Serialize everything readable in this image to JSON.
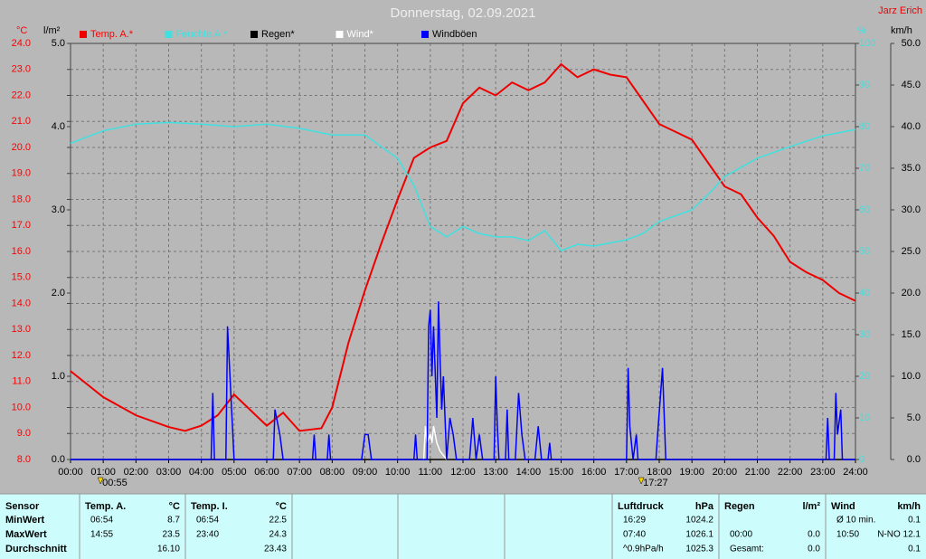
{
  "chart_data": {
    "type": "line",
    "title": "Donnerstag, 02.09.2021",
    "author": "Jarz Erich",
    "y_label": "°C",
    "y_color": "#ff0000",
    "rain_label": "l/m²",
    "y2_label": "%",
    "y2_color": "#40e0e0",
    "y3_label": "km/h",
    "grid": true,
    "xlim": [
      0,
      24
    ],
    "xticks": [
      {
        "value": 0,
        "label": "00:00"
      },
      {
        "value": 1,
        "label": "01:00"
      },
      {
        "value": 2,
        "label": "02:00"
      },
      {
        "value": 3,
        "label": "03:00"
      },
      {
        "value": 4,
        "label": "04:00"
      },
      {
        "value": 5,
        "label": "05:00"
      },
      {
        "value": 6,
        "label": "06:00"
      },
      {
        "value": 7,
        "label": "07:00"
      },
      {
        "value": 8,
        "label": "08:00"
      },
      {
        "value": 9,
        "label": "09:00"
      },
      {
        "value": 10,
        "label": "10:00"
      },
      {
        "value": 11,
        "label": "11:00"
      },
      {
        "value": 12,
        "label": "12:00"
      },
      {
        "value": 13,
        "label": "13:00"
      },
      {
        "value": 14,
        "label": "14:00"
      },
      {
        "value": 15,
        "label": "15:00"
      },
      {
        "value": 16,
        "label": "16:00"
      },
      {
        "value": 17,
        "label": "17:00"
      },
      {
        "value": 18,
        "label": "18:00"
      },
      {
        "value": 19,
        "label": "19:00"
      },
      {
        "value": 20,
        "label": "20:00"
      },
      {
        "value": 21,
        "label": "21:00"
      },
      {
        "value": 22,
        "label": "22:00"
      },
      {
        "value": 23,
        "label": "23:00"
      },
      {
        "value": 24,
        "label": "24:00"
      }
    ],
    "ylim": [
      8,
      24
    ],
    "yticks": [
      {
        "value": 8,
        "label": "8.0"
      },
      {
        "value": 9,
        "label": "9.0"
      },
      {
        "value": 10,
        "label": "10.0"
      },
      {
        "value": 11,
        "label": "11.0"
      },
      {
        "value": 12,
        "label": "12.0"
      },
      {
        "value": 13,
        "label": "13.0"
      },
      {
        "value": 14,
        "label": "14.0"
      },
      {
        "value": 15,
        "label": "15.0"
      },
      {
        "value": 16,
        "label": "16.0"
      },
      {
        "value": 17,
        "label": "17.0"
      },
      {
        "value": 18,
        "label": "18.0"
      },
      {
        "value": 19,
        "label": "19.0"
      },
      {
        "value": 20,
        "label": "20.0"
      },
      {
        "value": 21,
        "label": "21.0"
      },
      {
        "value": 22,
        "label": "22.0"
      },
      {
        "value": 23,
        "label": "23.0"
      },
      {
        "value": 24,
        "label": "24.0"
      }
    ],
    "rain_lim": [
      0,
      5
    ],
    "rain_ticks": [
      {
        "value": 0,
        "label": "0.0"
      },
      {
        "value": 1,
        "label": "1.0"
      },
      {
        "value": 2,
        "label": "2.0"
      },
      {
        "value": 3,
        "label": "3.0"
      },
      {
        "value": 4,
        "label": "4.0"
      },
      {
        "value": 5,
        "label": "5.0"
      }
    ],
    "y2lim": [
      0,
      100
    ],
    "y2ticks": [
      0,
      10,
      20,
      30,
      40,
      50,
      60,
      70,
      80,
      90,
      100
    ],
    "y3lim": [
      0,
      50
    ],
    "y3ticks": [
      {
        "value": 0,
        "label": "0.0"
      },
      {
        "value": 5,
        "label": "5.0"
      },
      {
        "value": 10,
        "label": "10.0"
      },
      {
        "value": 15,
        "label": "15.0"
      },
      {
        "value": 20,
        "label": "20.0"
      },
      {
        "value": 25,
        "label": "25.0"
      },
      {
        "value": 30,
        "label": "30.0"
      },
      {
        "value": 35,
        "label": "35.0"
      },
      {
        "value": 40,
        "label": "40.0"
      },
      {
        "value": 45,
        "label": "45.0"
      },
      {
        "value": 50,
        "label": "50.0"
      }
    ],
    "series": [
      {
        "name": "Temp. A.*",
        "color": "#ee0000",
        "axis": "y",
        "x": [
          0,
          1,
          2,
          3,
          3.5,
          4,
          4.5,
          5,
          6,
          6.5,
          7,
          7.67,
          8,
          8.5,
          9,
          9.5,
          10,
          10.5,
          11,
          11.5,
          12,
          12.5,
          13,
          13.5,
          14,
          14.5,
          15,
          15.5,
          16,
          16.5,
          17,
          17.5,
          18,
          18.5,
          19,
          19.5,
          20,
          20.5,
          21,
          21.5,
          22,
          22.5,
          23,
          23.5,
          24
        ],
        "values": [
          11.4,
          10.4,
          9.7,
          9.25,
          9.1,
          9.3,
          9.7,
          10.5,
          9.3,
          9.8,
          9.1,
          9.2,
          10.0,
          12.5,
          14.5,
          16.3,
          18.0,
          19.6,
          20.0,
          20.25,
          21.7,
          22.3,
          22.0,
          22.5,
          22.2,
          22.5,
          23.2,
          22.7,
          23.0,
          22.8,
          22.7,
          21.8,
          20.9,
          20.6,
          20.3,
          19.4,
          18.5,
          18.2,
          17.3,
          16.6,
          15.6,
          15.2,
          14.9,
          14.4,
          14.1
        ]
      },
      {
        "name": "Feuchte A.*",
        "color": "#40e0e0",
        "axis": "y2",
        "x": [
          0,
          1,
          2,
          3,
          4,
          5,
          6,
          7,
          8,
          9,
          10,
          10.5,
          11,
          11.5,
          12,
          12.5,
          13,
          13.5,
          14,
          14.5,
          15,
          15.5,
          16,
          17,
          17.5,
          18,
          19,
          19.5,
          20,
          20.5,
          21,
          22,
          23,
          24
        ],
        "values": [
          76,
          79,
          80.6,
          81,
          80.6,
          80,
          80.6,
          79.6,
          78,
          78,
          72.4,
          65.9,
          56,
          53.5,
          56,
          54.3,
          53.5,
          53.5,
          52.6,
          55,
          50.2,
          51.7,
          51.3,
          52.8,
          54.3,
          57.2,
          60,
          63.7,
          68,
          70.2,
          72.4,
          75.2,
          77.8,
          79.3
        ]
      },
      {
        "name": "Regen*",
        "color": "#000000",
        "axis": "rain",
        "x": [
          0,
          24
        ],
        "values": [
          0,
          0
        ]
      },
      {
        "name": "Wind*",
        "color": "#ffffff",
        "axis": "y3",
        "x": [
          10.8,
          10.85,
          10.9,
          11.0,
          11.05,
          11.1,
          11.2,
          11.3,
          11.5
        ],
        "values": [
          0,
          4,
          2,
          3,
          2,
          4,
          2,
          1,
          0
        ]
      },
      {
        "name": "Windböen",
        "color": "#0000ff",
        "axis": "y3",
        "x": [
          0,
          4.3,
          4.35,
          4.4,
          4.75,
          4.8,
          4.9,
          5.0,
          6.2,
          6.25,
          6.4,
          6.5,
          7.4,
          7.45,
          7.5,
          7.85,
          7.9,
          7.95,
          8.9,
          9.0,
          9.1,
          9.2,
          10.5,
          10.55,
          10.6,
          10.9,
          10.95,
          11.0,
          11.05,
          11.1,
          11.2,
          11.25,
          11.3,
          11.35,
          11.4,
          11.5,
          11.6,
          11.7,
          11.8,
          12.2,
          12.3,
          12.4,
          12.5,
          12.6,
          12.95,
          13.0,
          13.05,
          13.1,
          13.3,
          13.35,
          13.4,
          13.6,
          13.7,
          13.8,
          13.9,
          14.2,
          14.3,
          14.4,
          14.6,
          14.65,
          14.7,
          17.0,
          17.05,
          17.1,
          17.2,
          17.3,
          17.35,
          17.9,
          17.95,
          18.1,
          18.2,
          23.1,
          23.15,
          23.2,
          23.35,
          23.4,
          23.45,
          23.55,
          23.6,
          24
        ],
        "values": [
          0,
          0,
          8,
          0,
          0,
          16,
          8,
          0,
          0,
          6,
          3,
          0,
          0,
          3,
          0,
          0,
          3,
          0,
          0,
          3,
          3,
          0,
          0,
          3,
          0,
          0,
          16,
          18,
          10,
          16,
          5,
          19,
          12,
          6,
          10,
          0,
          5,
          3,
          0,
          0,
          5,
          0,
          3,
          0,
          0,
          10,
          4,
          0,
          0,
          6,
          0,
          0,
          8,
          3,
          0,
          0,
          4,
          0,
          0,
          2,
          0,
          0,
          11,
          4,
          0,
          3,
          0,
          0,
          3,
          11,
          0,
          0,
          5,
          0,
          0,
          8,
          3,
          6,
          0,
          0
        ]
      }
    ],
    "annotations": [
      {
        "label": "00:55",
        "x": 0.917
      },
      {
        "label": "17:27",
        "x": 17.45
      }
    ]
  },
  "stats": {
    "blocks": [
      {
        "title": "Sensor",
        "rows": [
          {
            "left": "MinWert"
          },
          {
            "left": "MaxWert"
          },
          {
            "left": "Durchschnitt"
          }
        ]
      },
      {
        "title": "Temp. A.",
        "unit": "°C",
        "rows": [
          {
            "left": "06:54",
            "right": "8.7"
          },
          {
            "left": "14:55",
            "right": "23.5"
          },
          {
            "right": "16.10"
          }
        ]
      },
      {
        "title": "Temp. I.",
        "unit": "°C",
        "rows": [
          {
            "left": "06:54",
            "right": "22.5"
          },
          {
            "left": "23:40",
            "right": "24.3"
          },
          {
            "right": "23.43"
          }
        ]
      },
      {
        "title": "Luftdruck",
        "unit": "hPa",
        "rows": [
          {
            "left": "16:29",
            "right": "1024.2"
          },
          {
            "left": "07:40",
            "right": "1026.1"
          },
          {
            "left": "^0.9hPa/h",
            "right": "1025.3"
          }
        ]
      },
      {
        "title": "Regen",
        "unit": "l/m²",
        "rows": [
          null,
          {
            "left": "00:00",
            "right": "0.0"
          },
          {
            "left": "Gesamt:",
            "right": "0.0"
          }
        ]
      },
      {
        "title": "Wind",
        "unit": "km/h",
        "rows": [
          {
            "left": "Ø 10 min.",
            "right": "0.1"
          },
          {
            "left": "10:50",
            "right": "N-NO 12.1"
          },
          {
            "right": "0.1"
          }
        ]
      }
    ]
  }
}
